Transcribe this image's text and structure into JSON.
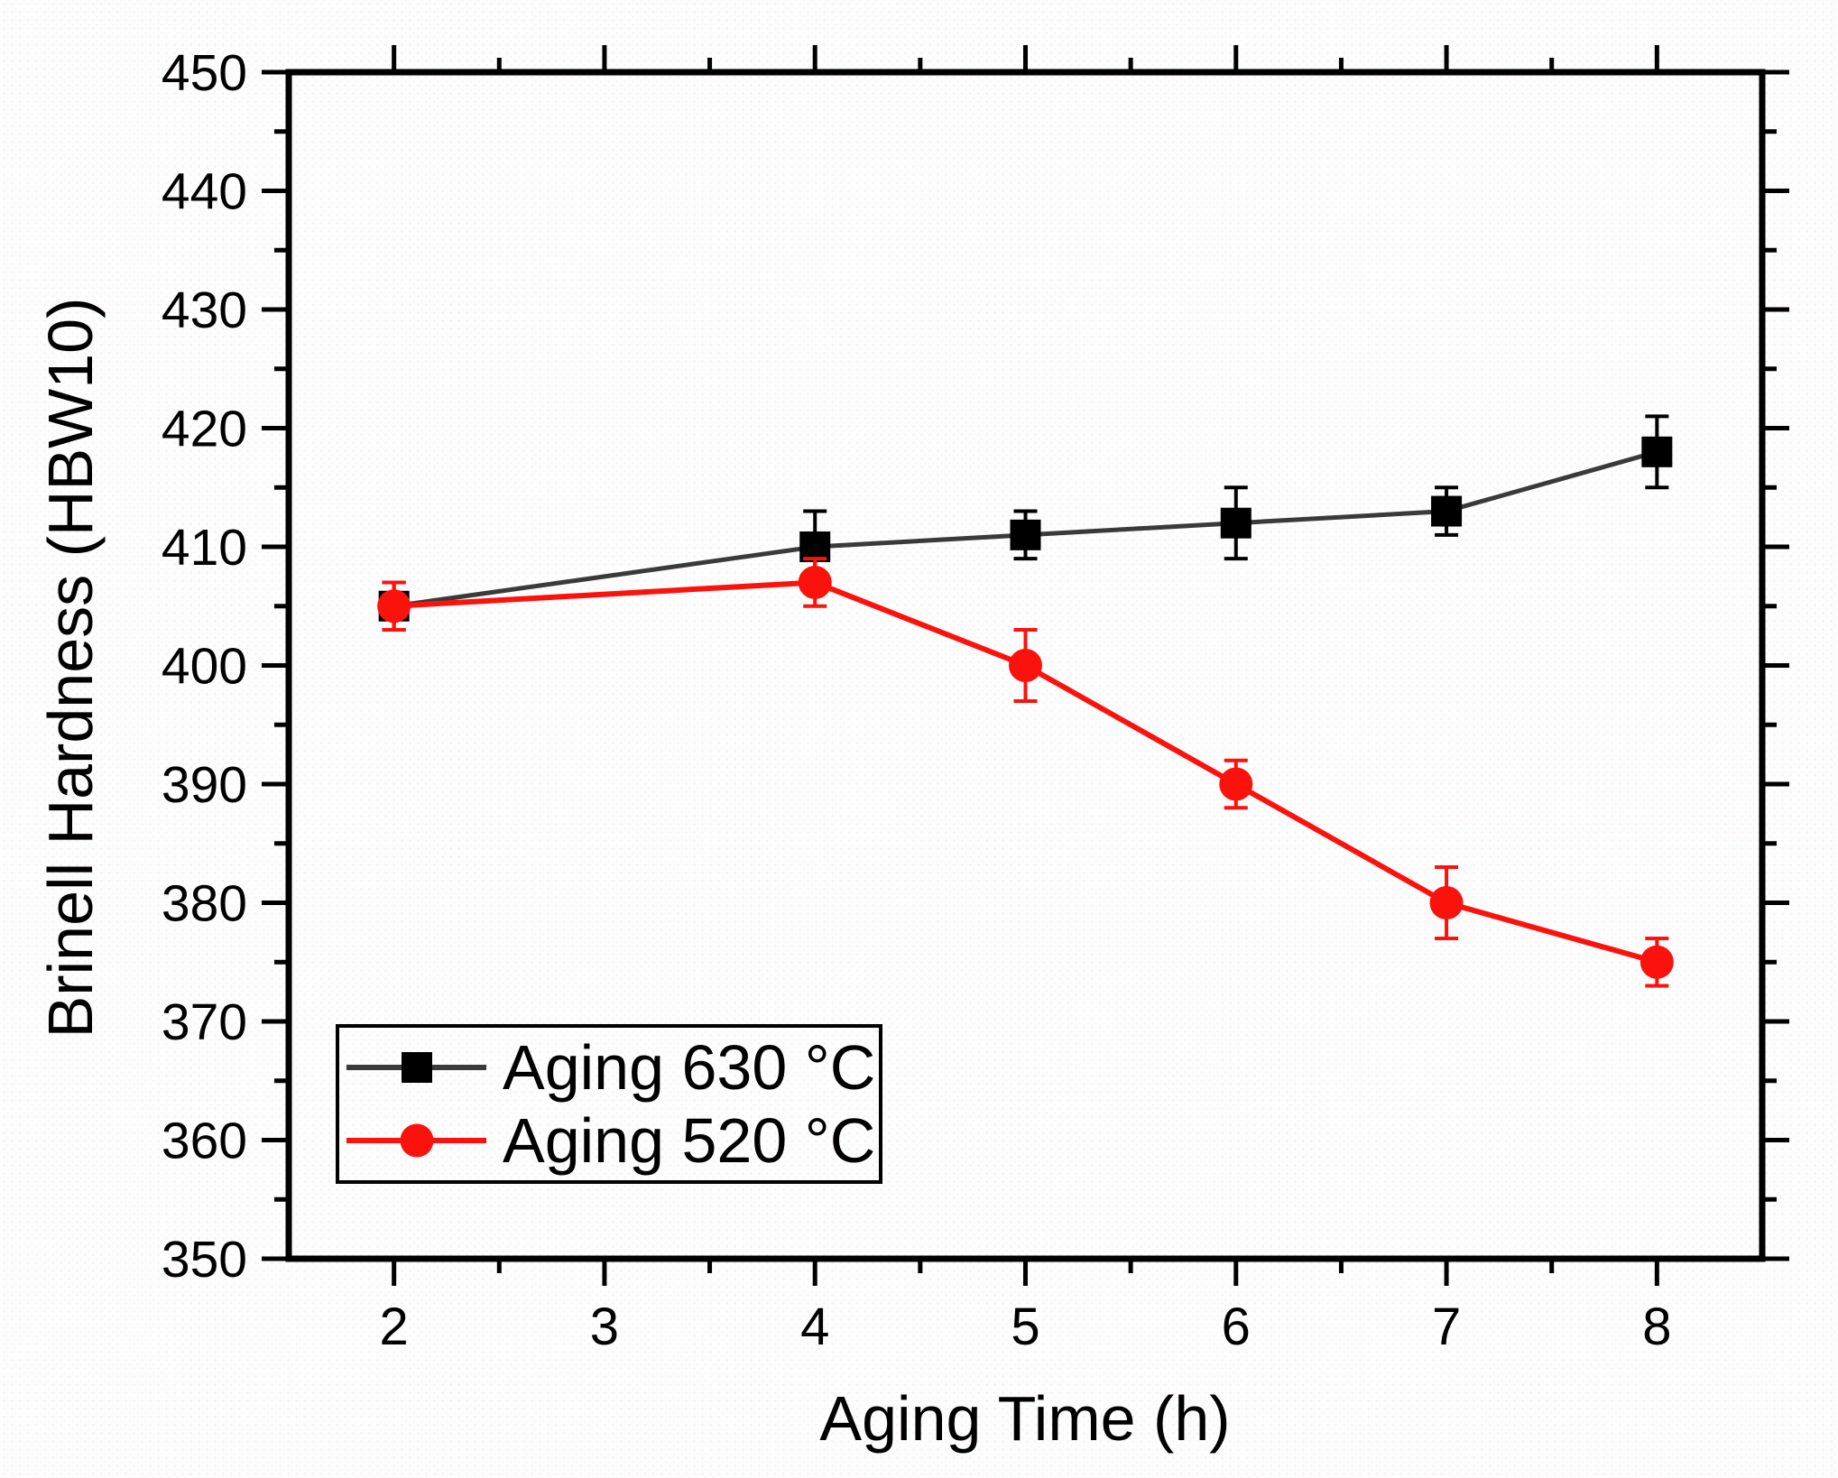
{
  "figure": {
    "background": "#fdfdfd",
    "frame_color": "#000000"
  },
  "chart_data": {
    "type": "line",
    "title": "",
    "xlabel": "Aging Time (h)",
    "ylabel": "Brinell Hardness (HBW10)",
    "xlim": [
      1.5,
      8.5
    ],
    "ylim": [
      350,
      450
    ],
    "x_major_ticks": [
      2,
      3,
      4,
      5,
      6,
      7,
      8
    ],
    "x_minor_ticks": [
      2.5,
      3.5,
      4.5,
      5.5,
      6.5,
      7.5
    ],
    "y_major_ticks": [
      350,
      360,
      370,
      380,
      390,
      400,
      410,
      420,
      430,
      440,
      450
    ],
    "y_minor_ticks": [
      355,
      365,
      375,
      385,
      395,
      405,
      415,
      425,
      435,
      445
    ],
    "grid": false,
    "legend_position": "bottom-left",
    "series": [
      {
        "name": "Aging 630 °C",
        "marker": "square",
        "marker_color": "#000000",
        "line_color": "#3a3a3a",
        "x": [
          2,
          4,
          5,
          6,
          7,
          8
        ],
        "y": [
          405,
          410,
          411,
          412,
          413,
          418
        ],
        "yerr": [
          2,
          3,
          2,
          3,
          2,
          3
        ]
      },
      {
        "name": "Aging 520 °C",
        "marker": "circle",
        "marker_color": "#fb120d",
        "line_color": "#fb120d",
        "x": [
          2,
          4,
          5,
          6,
          7,
          8
        ],
        "y": [
          405,
          407,
          400,
          390,
          380,
          375
        ],
        "yerr": [
          2,
          2,
          3,
          2,
          3,
          2
        ]
      }
    ]
  }
}
